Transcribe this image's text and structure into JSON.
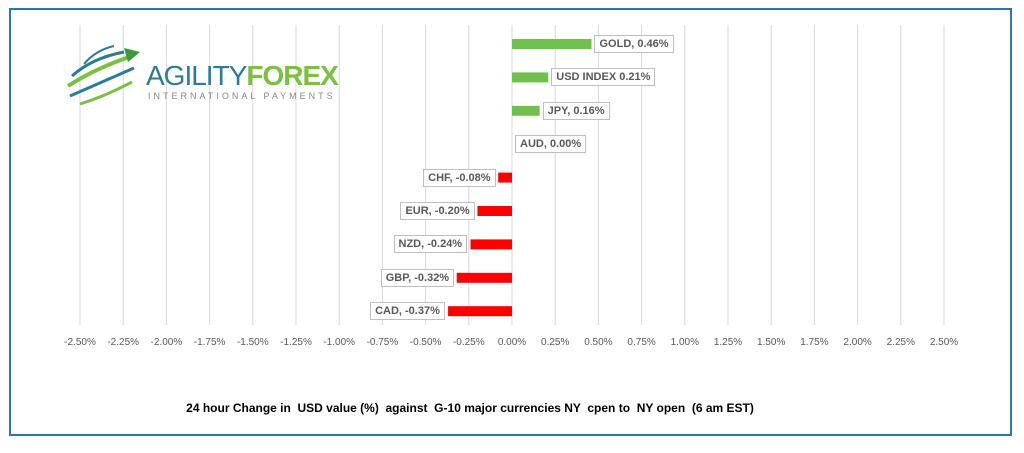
{
  "logo": {
    "brand1": "AGILITY",
    "brand2": "FOREX",
    "tagline": "INTERNATIONAL PAYMENTS"
  },
  "colors": {
    "positive": "#70c050",
    "negative": "#ff0000",
    "grid": "#d9d9d9",
    "frame": "#2e75b6"
  },
  "chart_data": {
    "type": "bar",
    "orientation": "horizontal",
    "title": "24 hour Change in  USD value (%)  against  G-10 major currencies NY  cpen to  NY open  (6 am EST)",
    "categories": [
      "GOLD",
      "USD INDEX",
      "JPY",
      "AUD",
      "CHF",
      "EUR",
      "NZD",
      "GBP",
      "CAD"
    ],
    "values": [
      0.46,
      0.21,
      0.16,
      0.0,
      -0.08,
      -0.2,
      -0.24,
      -0.32,
      -0.37
    ],
    "data_labels": [
      "GOLD, 0.46%",
      "USD INDEX 0.21%",
      "JPY, 0.16%",
      "AUD, 0.00%",
      "CHF, -0.08%",
      "EUR, -0.20%",
      "NZD, -0.24%",
      "GBP, -0.32%",
      "CAD, -0.37%"
    ],
    "xlim": [
      -2.5,
      2.5
    ],
    "xticks": [
      "-2.50%",
      "-2.25%",
      "-2.00%",
      "-1.75%",
      "-1.50%",
      "-1.25%",
      "-1.00%",
      "-0.75%",
      "-0.50%",
      "-0.25%",
      "0.00%",
      "0.25%",
      "0.50%",
      "0.75%",
      "1.00%",
      "1.25%",
      "1.50%",
      "1.75%",
      "2.00%",
      "2.25%",
      "2.50%"
    ],
    "grid": true
  }
}
